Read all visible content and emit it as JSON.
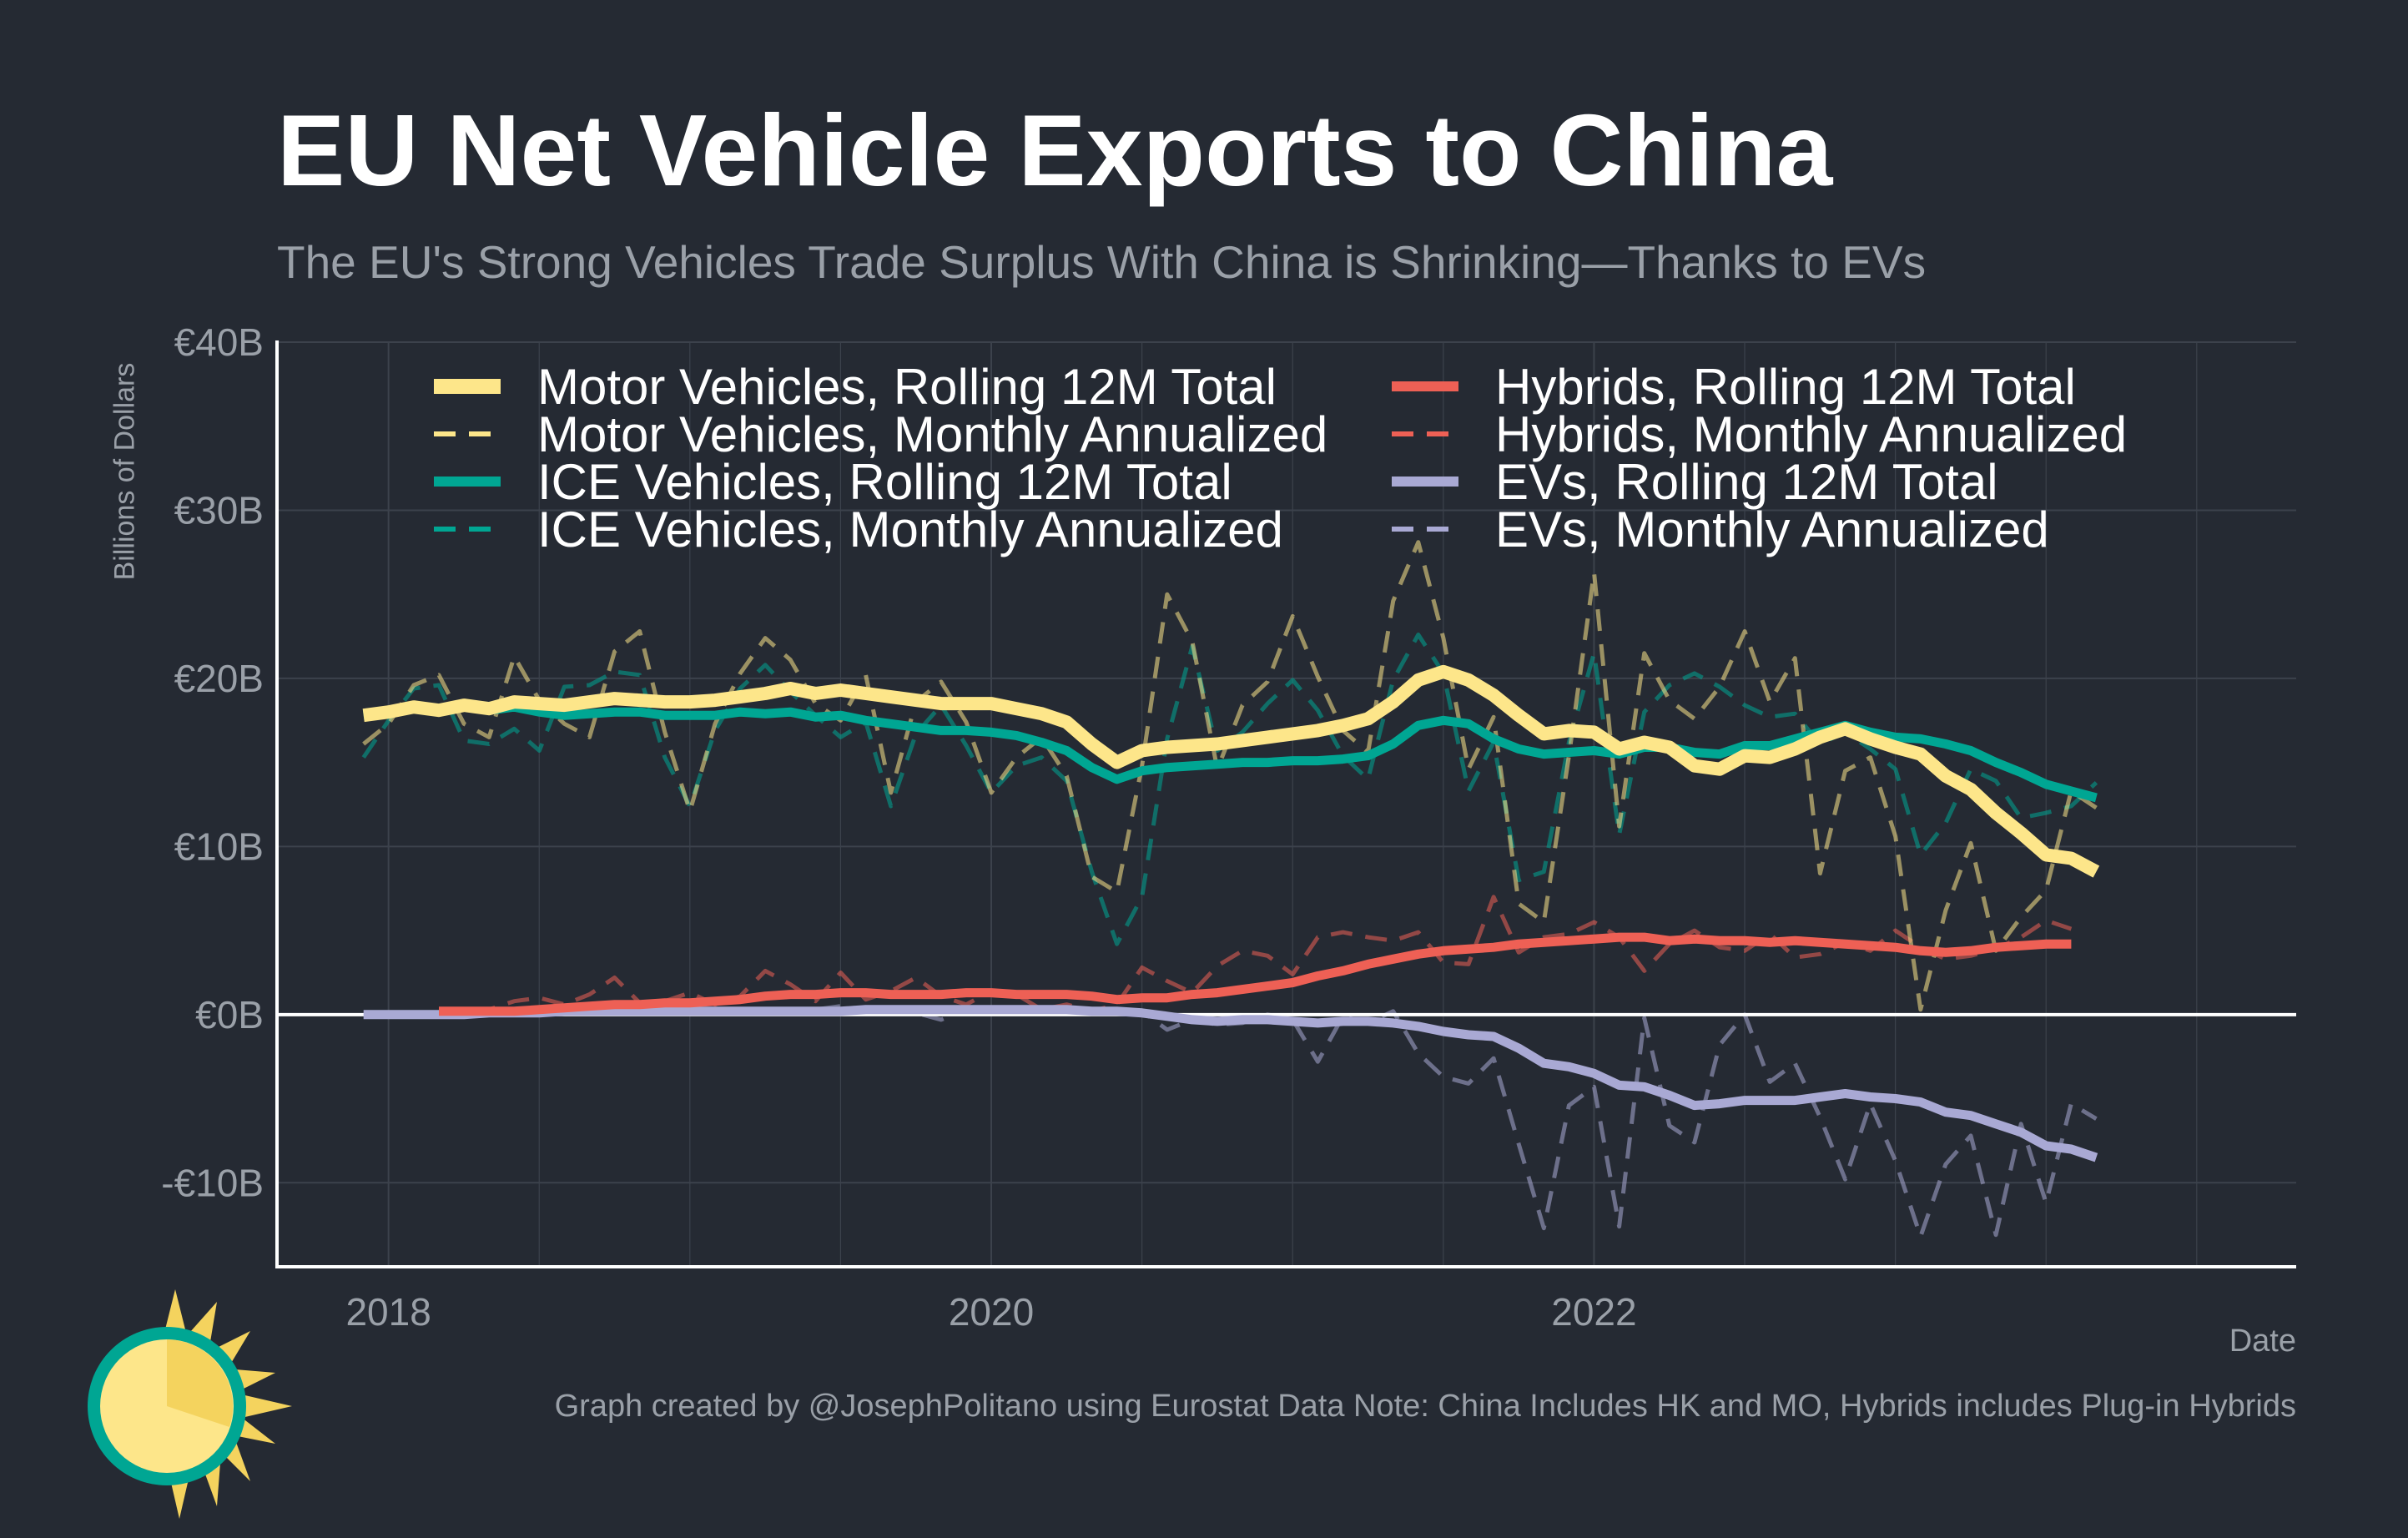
{
  "title": "EU Net Vehicle Exports to China",
  "subtitle": "The EU's Strong Vehicles Trade Surplus With China is Shrinking—Thanks to EVs",
  "caption": "Graph created by @JosephPolitano using Eurostat Data  Note: China Includes HK and MO, Hybrids includes Plug-in Hybrids",
  "chart_data": {
    "type": "line",
    "title": "EU Net Vehicle Exports to China",
    "xlabel": "Date",
    "ylabel": "Billions of Dollars",
    "xlim": [
      2017.63,
      2024.33
    ],
    "ylim": [
      -15,
      40
    ],
    "x_ticks": [
      2018,
      2020,
      2022
    ],
    "x_tick_labels": [
      "2018",
      "2020",
      "2022"
    ],
    "y_ticks": [
      40,
      30,
      20,
      10,
      0,
      -10
    ],
    "y_tick_labels": [
      "€40B",
      "€30B",
      "€20B",
      "€10B",
      "€0B",
      "-€10B"
    ],
    "grid": true,
    "legend_position": "top",
    "colors": {
      "motor": "#fde68a",
      "ice": "#00a693",
      "hybrids": "#ee6055",
      "evs": "#a9a9d4",
      "zero_line": "#ffffff",
      "axis": "#ffffff",
      "grid": "#3c424c"
    },
    "series": [
      {
        "name": "Motor Vehicles, Rolling 12M Total",
        "key": "motor",
        "style": "solid",
        "x_start": 2017.917,
        "x_step": 0.08333,
        "values": [
          17.8,
          18.0,
          18.3,
          18.1,
          18.4,
          18.2,
          18.6,
          18.5,
          18.4,
          18.6,
          18.8,
          18.7,
          18.6,
          18.6,
          18.7,
          18.9,
          19.1,
          19.4,
          19.1,
          19.3,
          19.1,
          18.9,
          18.7,
          18.5,
          18.5,
          18.5,
          18.2,
          17.9,
          17.4,
          16.1,
          15.0,
          15.7,
          15.9,
          16.0,
          16.1,
          16.3,
          16.5,
          16.7,
          16.9,
          17.2,
          17.6,
          18.6,
          19.9,
          20.4,
          19.9,
          19.0,
          17.8,
          16.7,
          16.9,
          16.8,
          15.8,
          16.2,
          15.9,
          14.8,
          14.6,
          15.4,
          15.3,
          15.8,
          16.5,
          17.0,
          16.4,
          15.9,
          15.5,
          14.2,
          13.4,
          12.0,
          10.8,
          9.5,
          9.3,
          8.5
        ]
      },
      {
        "name": "Motor Vehicles, Monthly Annualized",
        "key": "motor",
        "style": "dashed",
        "x_start": 2017.917,
        "x_step": 0.08333,
        "values": [
          16.1,
          17.3,
          19.6,
          20.2,
          17.3,
          16.5,
          21.3,
          18.7,
          17.3,
          16.5,
          21.6,
          22.8,
          16.8,
          12.1,
          17.3,
          20.3,
          22.4,
          21.1,
          18.5,
          17.5,
          20.2,
          13.2,
          18.6,
          19.8,
          17.4,
          13.2,
          15.3,
          16.5,
          14.2,
          8.2,
          7.3,
          14.8,
          25.0,
          22.2,
          14.6,
          18.4,
          19.8,
          23.7,
          20.1,
          16.9,
          15.6,
          24.6,
          28.1,
          22.4,
          14.6,
          17.7,
          6.6,
          5.5,
          15.4,
          26.3,
          11.2,
          21.5,
          18.7,
          17.6,
          19.5,
          22.8,
          18.6,
          21.2,
          8.4,
          14.5,
          15.3,
          10.6,
          0.3,
          6.2,
          10.2,
          3.8,
          5.8,
          7.4,
          13.3,
          12.3
        ]
      },
      {
        "name": "ICE Vehicles, Rolling 12M Total",
        "key": "ice",
        "style": "solid",
        "x_start": 2017.917,
        "x_step": 0.08333,
        "values": [
          17.8,
          18.0,
          18.3,
          18.1,
          18.4,
          18.1,
          18.3,
          18.0,
          17.8,
          17.9,
          18.0,
          18.0,
          17.8,
          17.8,
          17.8,
          18.0,
          17.9,
          18.0,
          17.7,
          17.8,
          17.5,
          17.3,
          17.1,
          16.9,
          16.9,
          16.8,
          16.6,
          16.2,
          15.7,
          14.7,
          14.0,
          14.5,
          14.7,
          14.8,
          14.9,
          15.0,
          15.0,
          15.1,
          15.1,
          15.2,
          15.4,
          16.1,
          17.2,
          17.5,
          17.3,
          16.4,
          15.8,
          15.5,
          15.6,
          15.7,
          15.5,
          15.9,
          15.9,
          15.6,
          15.5,
          16.0,
          16.0,
          16.4,
          16.8,
          17.2,
          16.8,
          16.5,
          16.4,
          16.1,
          15.7,
          15.0,
          14.4,
          13.7,
          13.3,
          12.9
        ]
      },
      {
        "name": "ICE Vehicles, Monthly Annualized",
        "key": "ice",
        "style": "dashed",
        "x_start": 2017.917,
        "x_step": 0.08333,
        "values": [
          15.3,
          17.5,
          19.4,
          19.6,
          16.3,
          16.1,
          17.0,
          15.7,
          19.5,
          19.6,
          20.4,
          20.2,
          15.3,
          12.4,
          16.9,
          19.4,
          20.8,
          19.2,
          17.8,
          16.5,
          17.4,
          12.4,
          16.7,
          18.4,
          16.0,
          13.2,
          14.8,
          15.3,
          13.9,
          8.5,
          4.2,
          7.0,
          16.4,
          21.9,
          15.7,
          16.8,
          18.5,
          19.9,
          18.1,
          15.4,
          14.0,
          19.9,
          22.6,
          20.3,
          13.3,
          16.2,
          8.0,
          8.5,
          16.2,
          21.5,
          10.7,
          18.0,
          19.6,
          20.3,
          19.5,
          18.4,
          17.7,
          17.9,
          16.1,
          16.8,
          15.8,
          14.6,
          9.5,
          11.4,
          14.6,
          13.9,
          11.7,
          12.0,
          12.4,
          13.8
        ]
      },
      {
        "name": "Hybrids, Rolling 12M Total",
        "key": "hybrids",
        "style": "solid",
        "x_start": 2018.167,
        "x_step": 0.08333,
        "values": [
          0.2,
          0.2,
          0.2,
          0.2,
          0.3,
          0.4,
          0.5,
          0.6,
          0.6,
          0.7,
          0.7,
          0.8,
          0.9,
          1.1,
          1.2,
          1.2,
          1.3,
          1.3,
          1.2,
          1.2,
          1.2,
          1.3,
          1.3,
          1.2,
          1.2,
          1.2,
          1.1,
          0.9,
          1.0,
          1.0,
          1.2,
          1.3,
          1.5,
          1.7,
          1.9,
          2.3,
          2.6,
          3.0,
          3.3,
          3.6,
          3.8,
          3.9,
          4.0,
          4.2,
          4.3,
          4.4,
          4.5,
          4.6,
          4.6,
          4.4,
          4.5,
          4.4,
          4.4,
          4.3,
          4.4,
          4.3,
          4.2,
          4.1,
          4.0,
          3.8,
          3.7,
          3.8,
          4.0,
          4.1,
          4.2,
          4.2
        ]
      },
      {
        "name": "Hybrids, Monthly Annualized",
        "key": "hybrids",
        "style": "dashed",
        "x_start": 2018.167,
        "x_step": 0.08333,
        "values": [
          0.1,
          0.2,
          0.3,
          0.8,
          1.0,
          0.6,
          1.2,
          2.2,
          0.7,
          0.8,
          1.3,
          0.6,
          1.1,
          2.6,
          1.8,
          0.8,
          2.5,
          0.9,
          1.4,
          2.2,
          1.1,
          0.6,
          1.4,
          1.2,
          0.3,
          0.6,
          0.2,
          0.6,
          2.8,
          2.0,
          1.3,
          2.9,
          3.8,
          3.5,
          2.4,
          4.6,
          4.9,
          4.6,
          4.4,
          4.9,
          3.1,
          3.0,
          7.0,
          3.7,
          4.6,
          4.8,
          5.5,
          4.6,
          2.6,
          4.2,
          5.0,
          4.0,
          3.8,
          4.8,
          3.4,
          3.6,
          4.3,
          3.8,
          5.0,
          4.0,
          3.3,
          3.5,
          3.9,
          4.6,
          5.6,
          5.1
        ]
      },
      {
        "name": "EVs, Rolling 12M Total",
        "key": "evs",
        "style": "solid",
        "x_start": 2017.917,
        "x_step": 0.08333,
        "values": [
          0.0,
          0.0,
          0.0,
          0.0,
          0.0,
          0.1,
          0.1,
          0.1,
          0.2,
          0.2,
          0.2,
          0.2,
          0.2,
          0.2,
          0.2,
          0.2,
          0.2,
          0.2,
          0.2,
          0.2,
          0.3,
          0.3,
          0.3,
          0.3,
          0.3,
          0.3,
          0.3,
          0.3,
          0.3,
          0.2,
          0.2,
          0.1,
          -0.1,
          -0.3,
          -0.4,
          -0.3,
          -0.3,
          -0.4,
          -0.5,
          -0.4,
          -0.4,
          -0.5,
          -0.7,
          -1.0,
          -1.2,
          -1.3,
          -2.0,
          -2.9,
          -3.1,
          -3.5,
          -4.2,
          -4.3,
          -4.8,
          -5.4,
          -5.3,
          -5.1,
          -5.1,
          -5.1,
          -4.9,
          -4.7,
          -4.9,
          -5.0,
          -5.2,
          -5.8,
          -6.0,
          -6.5,
          -7.0,
          -7.8,
          -8.0,
          -8.5
        ]
      },
      {
        "name": "EVs, Monthly Annualized",
        "key": "evs",
        "style": "dashed",
        "x_start": 2017.917,
        "x_step": 0.08333,
        "values": [
          0.0,
          0.0,
          0.1,
          0.1,
          0.1,
          0.1,
          0.2,
          0.2,
          0.2,
          0.2,
          0.2,
          0.2,
          0.2,
          0.3,
          0.3,
          0.2,
          0.3,
          0.2,
          0.3,
          0.5,
          0.3,
          0.4,
          0.1,
          -0.3,
          0.3,
          0.4,
          0.3,
          0.2,
          0.1,
          0.2,
          0.2,
          0.2,
          -0.9,
          -0.3,
          -0.6,
          -0.5,
          0.0,
          -0.3,
          -2.8,
          -0.1,
          -0.5,
          0.2,
          -2.3,
          -3.7,
          -4.1,
          -2.6,
          -7.7,
          -12.7,
          -5.4,
          -4.3,
          -12.6,
          -0.2,
          -6.6,
          -7.6,
          -1.8,
          0.0,
          -4.0,
          -2.9,
          -6.1,
          -9.8,
          -5.3,
          -8.7,
          -13.2,
          -8.9,
          -7.2,
          -13.1,
          -6.5,
          -11.2,
          -5.3,
          -6.2
        ]
      }
    ]
  },
  "legend": {
    "items": [
      {
        "label": "Motor Vehicles, Rolling 12M Total",
        "key": "motor",
        "style": "solid"
      },
      {
        "label": "Motor Vehicles, Monthly Annualized",
        "key": "motor",
        "style": "dashed"
      },
      {
        "label": "ICE Vehicles, Rolling 12M Total",
        "key": "ice",
        "style": "solid"
      },
      {
        "label": "ICE Vehicles, Monthly Annualized",
        "key": "ice",
        "style": "dashed"
      },
      {
        "label": "Hybrids, Rolling 12M Total",
        "key": "hybrids",
        "style": "solid"
      },
      {
        "label": "Hybrids, Monthly Annualized",
        "key": "hybrids",
        "style": "dashed"
      },
      {
        "label": "EVs, Rolling 12M Total",
        "key": "evs",
        "style": "solid"
      },
      {
        "label": "EVs, Monthly Annualized",
        "key": "evs",
        "style": "dashed"
      }
    ]
  },
  "logo": {
    "icon": "sun-logo-icon"
  }
}
